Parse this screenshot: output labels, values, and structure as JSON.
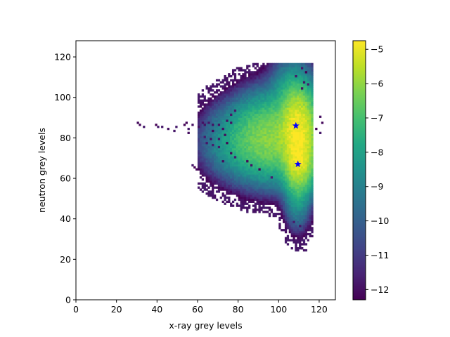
{
  "chart_data": {
    "type": "heatmap",
    "title": "",
    "xlabel": "x-ray grey levels",
    "ylabel": "neutron grey levels",
    "xlim": [
      0,
      128
    ],
    "ylim": [
      0,
      128
    ],
    "x_ticks": [
      0,
      20,
      40,
      60,
      80,
      100,
      120
    ],
    "y_ticks": [
      0,
      20,
      40,
      60,
      80,
      100,
      120
    ],
    "grid": false,
    "colormap": "viridis",
    "colorbar": {
      "range": [
        -12.3,
        -4.75
      ],
      "ticks": [
        -12,
        -11,
        -10,
        -9,
        -8,
        -7,
        -6,
        -5
      ]
    },
    "peaks": [
      {
        "x": 108.5,
        "y": 86,
        "marker": "star",
        "color": "#0000ff"
      },
      {
        "x": 109.5,
        "y": 67,
        "marker": "star",
        "color": "#0000ff"
      }
    ],
    "sparse_cells": [
      [
        30,
        87
      ],
      [
        31,
        86
      ],
      [
        33,
        85
      ],
      [
        39,
        86
      ],
      [
        40,
        85
      ],
      [
        42,
        85
      ],
      [
        45,
        84
      ],
      [
        49,
        85
      ],
      [
        53,
        86
      ],
      [
        54,
        87
      ],
      [
        55,
        84
      ],
      [
        57,
        86
      ],
      [
        60,
        85
      ],
      [
        62,
        87
      ],
      [
        63,
        86
      ],
      [
        65,
        87
      ],
      [
        67,
        86
      ],
      [
        48,
        83
      ],
      [
        55,
        82
      ],
      [
        67,
        83
      ],
      [
        70,
        86
      ],
      [
        72,
        84
      ],
      [
        74,
        88
      ],
      [
        76,
        87
      ],
      [
        63,
        80
      ],
      [
        66,
        79
      ],
      [
        70,
        79
      ],
      [
        73,
        81
      ],
      [
        64,
        77
      ],
      [
        67,
        76
      ],
      [
        70,
        75
      ],
      [
        74,
        77
      ],
      [
        76,
        72
      ],
      [
        57,
        66
      ],
      [
        58,
        65
      ],
      [
        59,
        64
      ],
      [
        72,
        68
      ],
      [
        78,
        70
      ],
      [
        76,
        91
      ],
      [
        78,
        93
      ],
      [
        84,
        68
      ],
      [
        86,
        66
      ],
      [
        90,
        64
      ],
      [
        96,
        60
      ],
      [
        107,
        38
      ],
      [
        110,
        36
      ],
      [
        109,
        28
      ],
      [
        110,
        26
      ],
      [
        111,
        25
      ],
      [
        112,
        24
      ],
      [
        113,
        24
      ],
      [
        111,
        104
      ],
      [
        112,
        107
      ],
      [
        108,
        110
      ],
      [
        111,
        114
      ],
      [
        113,
        112
      ],
      [
        114,
        106
      ],
      [
        120,
        90
      ],
      [
        121,
        87
      ],
      [
        120,
        82
      ],
      [
        118,
        84
      ]
    ]
  }
}
